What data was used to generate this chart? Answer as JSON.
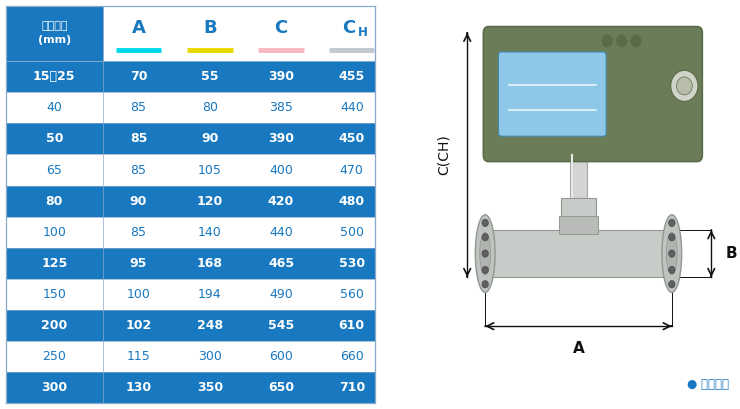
{
  "col_headers": [
    "仪表口径\n(mm)",
    "A",
    "B",
    "C",
    "CH"
  ],
  "underline_colors": [
    "#00d8e8",
    "#e8d800",
    "#f8b8c0",
    "#c0c8d0"
  ],
  "rows": [
    [
      "15～25",
      "70",
      "55",
      "390",
      "455"
    ],
    [
      "40",
      "85",
      "80",
      "385",
      "440"
    ],
    [
      "50",
      "85",
      "90",
      "390",
      "450"
    ],
    [
      "65",
      "85",
      "105",
      "400",
      "470"
    ],
    [
      "80",
      "90",
      "120",
      "420",
      "480"
    ],
    [
      "100",
      "85",
      "140",
      "440",
      "500"
    ],
    [
      "125",
      "95",
      "168",
      "465",
      "530"
    ],
    [
      "150",
      "100",
      "194",
      "490",
      "560"
    ],
    [
      "200",
      "102",
      "248",
      "545",
      "610"
    ],
    [
      "250",
      "115",
      "300",
      "600",
      "660"
    ],
    [
      "300",
      "130",
      "350",
      "650",
      "710"
    ]
  ],
  "blue_row_bg": "#1878c0",
  "white_row_bg": "#ffffff",
  "blue_text": "#1878c0",
  "white_text": "#ffffff",
  "header_bg": "#ffffff",
  "header_first_bg": "#1878c0",
  "blue_rows": [
    0,
    2,
    4,
    6,
    8,
    10
  ],
  "border_color": "#88aacc",
  "bullet_color": "#1878c0",
  "bullet_label": "● 常规仪表",
  "dim_C_label": "C(CH)",
  "dim_A_label": "A",
  "dim_B_label": "B"
}
